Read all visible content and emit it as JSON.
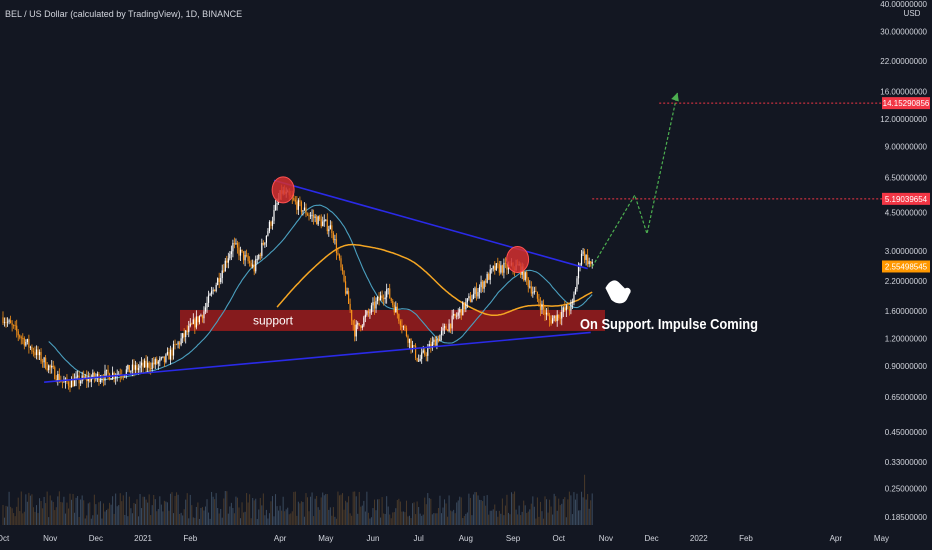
{
  "chart_data": {
    "type": "candlestick",
    "title": "BEL / US Dollar (calculated by TradingView), 1D, BINANCE",
    "y_axis": {
      "scale": "log",
      "currency": "USD",
      "ticks": [
        "40.00000000",
        "30.00000000",
        "22.00000000",
        "16.00000000",
        "12.00000000",
        "9.00000000",
        "6.50000000",
        "4.50000000",
        "3.00000000",
        "2.20000000",
        "1.60000000",
        "1.20000000",
        "0.90000000",
        "0.65000000",
        "0.45000000",
        "0.33000000",
        "0.25000000",
        "0.18500000"
      ]
    },
    "x_axis": {
      "ticks": [
        "Oct",
        "Nov",
        "Dec",
        "2021",
        "Feb",
        "Apr",
        "May",
        "Jun",
        "Jul",
        "Aug",
        "Sep",
        "Oct",
        "Nov",
        "Dec",
        "2022",
        "Feb",
        "Apr",
        "May"
      ]
    },
    "price_key_points": [
      {
        "date": "2020-10-01",
        "close": 1.5
      },
      {
        "date": "2020-11-10",
        "close": 0.75
      },
      {
        "date": "2020-12-20",
        "close": 0.85
      },
      {
        "date": "2021-01-15",
        "close": 0.95
      },
      {
        "date": "2021-02-10",
        "close": 1.6
      },
      {
        "date": "2021-03-01",
        "close": 3.2
      },
      {
        "date": "2021-03-15",
        "close": 2.5
      },
      {
        "date": "2021-04-02",
        "close": 5.6
      },
      {
        "date": "2021-04-20",
        "close": 4.4
      },
      {
        "date": "2021-05-05",
        "close": 3.8
      },
      {
        "date": "2021-05-20",
        "close": 1.3
      },
      {
        "date": "2021-06-10",
        "close": 2.0
      },
      {
        "date": "2021-07-01",
        "close": 0.95
      },
      {
        "date": "2021-07-25",
        "close": 1.5
      },
      {
        "date": "2021-08-20",
        "close": 2.5
      },
      {
        "date": "2021-09-05",
        "close": 2.55
      },
      {
        "date": "2021-09-25",
        "close": 1.45
      },
      {
        "date": "2021-10-10",
        "close": 1.7
      },
      {
        "date": "2021-10-16",
        "close": 3.0
      },
      {
        "date": "2021-10-23",
        "close": 2.55
      }
    ],
    "price_labels": [
      {
        "value": "14.15290856",
        "color": "#f23645"
      },
      {
        "value": "5.19039654",
        "color": "#f23645"
      },
      {
        "value": "2.55498545",
        "color": "#ff9800"
      }
    ],
    "annotations": {
      "support_label": "support",
      "callout": "On Support. Impulse Coming"
    },
    "colors": {
      "background": "#131722",
      "candle_up": "#ffffff",
      "candle_down": "#f7931a",
      "ma_short": "#4a9fbf",
      "ma_long": "#f5a623",
      "trendline": "#2a2ae8",
      "support_zone": "#9b1c1c",
      "projection": "#4caf50",
      "target_line": "#f23645"
    }
  }
}
